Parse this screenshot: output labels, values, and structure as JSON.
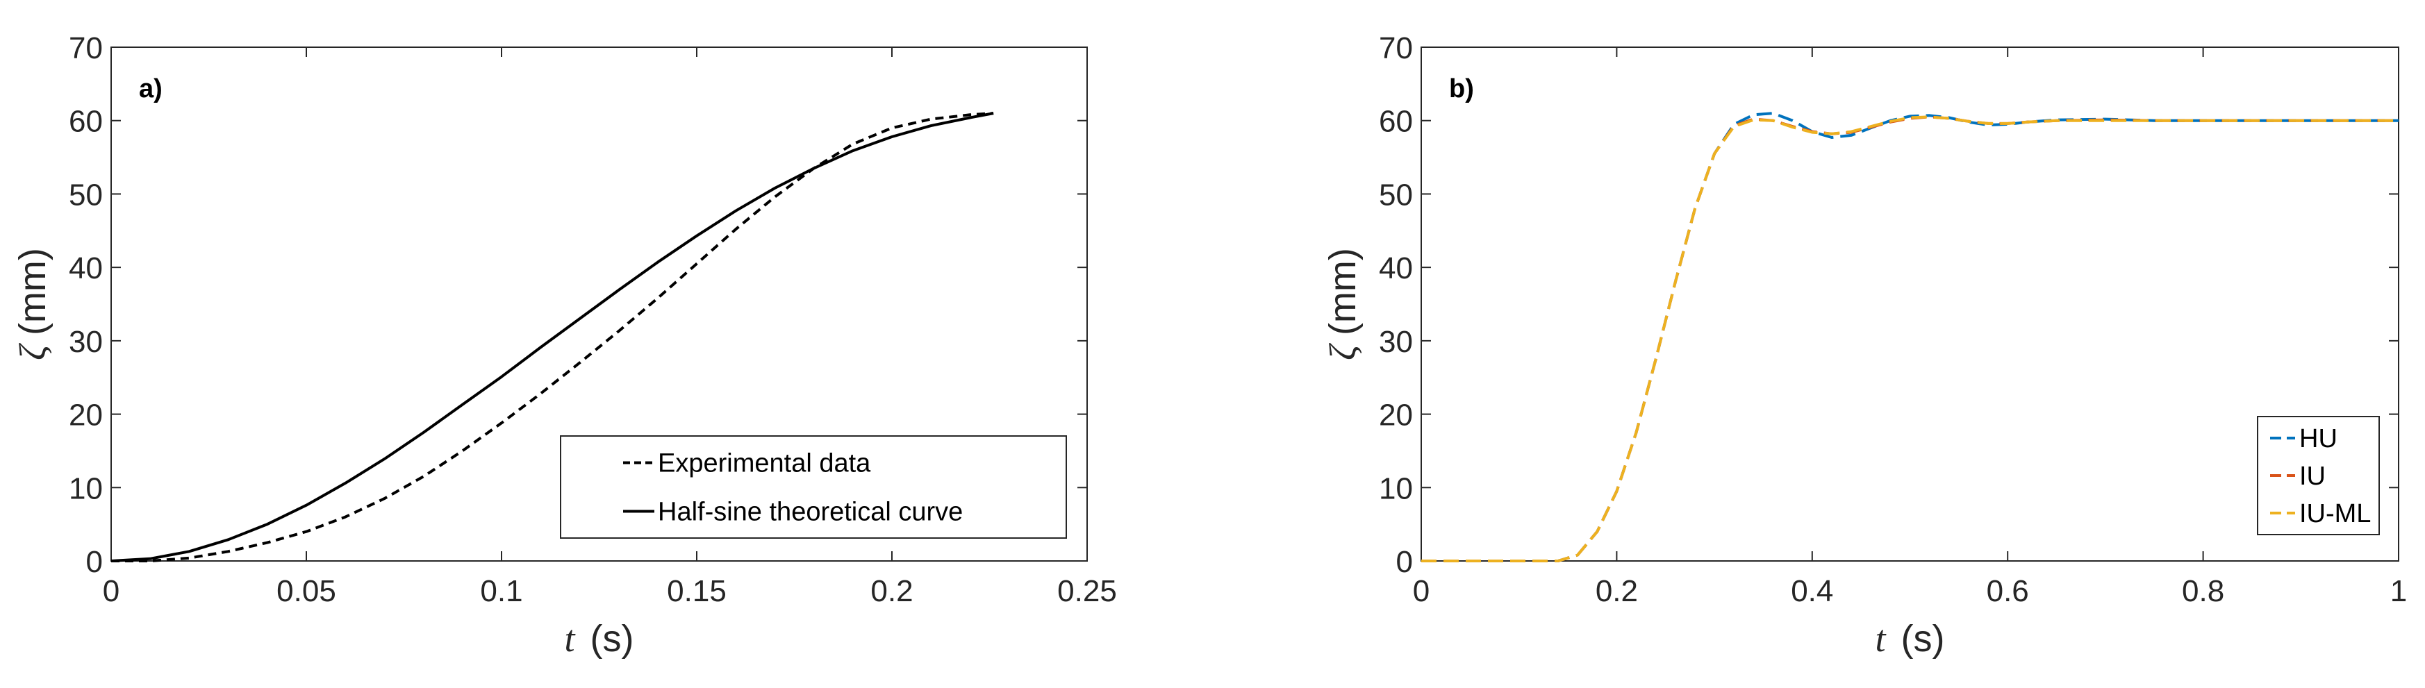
{
  "chart_data": [
    {
      "type": "line",
      "panel_label": "a)",
      "xlabel_symbol": "t",
      "xlabel_unit": "(s)",
      "ylabel_symbol": "ζ",
      "ylabel_unit": "(mm)",
      "xlim": [
        0,
        0.25
      ],
      "ylim": [
        0,
        70
      ],
      "xticks": [
        0,
        0.05,
        0.1,
        0.15,
        0.2,
        0.25
      ],
      "xtick_labels": [
        "0",
        "0.05",
        "0.1",
        "0.15",
        "0.2",
        "0.25"
      ],
      "yticks": [
        0,
        10,
        20,
        30,
        40,
        50,
        60,
        70
      ],
      "ytick_labels": [
        "0",
        "10",
        "20",
        "30",
        "40",
        "50",
        "60",
        "70"
      ],
      "grid": false,
      "legend_position": "bottom-right",
      "series": [
        {
          "name": "Experimental data",
          "color": "#000000",
          "dash": "dashed",
          "x": [
            0,
            0.01,
            0.02,
            0.03,
            0.04,
            0.05,
            0.06,
            0.07,
            0.08,
            0.09,
            0.1,
            0.11,
            0.12,
            0.13,
            0.14,
            0.15,
            0.16,
            0.17,
            0.18,
            0.19,
            0.2,
            0.21,
            0.22,
            0.226
          ],
          "y": [
            0,
            0,
            0.4,
            1.3,
            2.5,
            4.0,
            6.0,
            8.5,
            11.5,
            15.0,
            18.8,
            22.8,
            27.0,
            31.3,
            35.8,
            40.5,
            45.2,
            49.6,
            53.5,
            56.8,
            59.0,
            60.2,
            60.8,
            61
          ]
        },
        {
          "name": "Half-sine theoretical curve",
          "color": "#000000",
          "dash": "solid",
          "x": [
            0,
            0.01,
            0.02,
            0.03,
            0.04,
            0.05,
            0.06,
            0.07,
            0.08,
            0.09,
            0.1,
            0.11,
            0.12,
            0.13,
            0.14,
            0.15,
            0.16,
            0.17,
            0.18,
            0.19,
            0.2,
            0.21,
            0.22,
            0.226
          ],
          "y": [
            0,
            0.3,
            1.3,
            2.9,
            5.0,
            7.6,
            10.6,
            13.9,
            17.5,
            21.3,
            25.1,
            29.1,
            33.0,
            36.9,
            40.7,
            44.3,
            47.7,
            50.8,
            53.5,
            55.9,
            57.8,
            59.3,
            60.4,
            61
          ]
        }
      ]
    },
    {
      "type": "line",
      "panel_label": "b)",
      "xlabel_symbol": "t",
      "xlabel_unit": "(s)",
      "ylabel_symbol": "ζ",
      "ylabel_unit": "(mm)",
      "xlim": [
        0,
        1
      ],
      "ylim": [
        0,
        70
      ],
      "xticks": [
        0,
        0.2,
        0.4,
        0.6,
        0.8,
        1
      ],
      "xtick_labels": [
        "0",
        "0.2",
        "0.4",
        "0.6",
        "0.8",
        "1"
      ],
      "yticks": [
        0,
        10,
        20,
        30,
        40,
        50,
        60,
        70
      ],
      "ytick_labels": [
        "0",
        "10",
        "20",
        "30",
        "40",
        "50",
        "60",
        "70"
      ],
      "grid": false,
      "legend_position": "bottom-right",
      "series": [
        {
          "name": "HU",
          "color": "#0072BD",
          "dash": "dashed",
          "x": [
            0,
            0.14,
            0.16,
            0.18,
            0.2,
            0.22,
            0.24,
            0.26,
            0.28,
            0.3,
            0.32,
            0.34,
            0.36,
            0.38,
            0.4,
            0.42,
            0.44,
            0.46,
            0.48,
            0.5,
            0.52,
            0.54,
            0.56,
            0.58,
            0.6,
            0.62,
            0.65,
            0.7,
            0.75,
            0.8,
            0.9,
            1
          ],
          "y": [
            0,
            0,
            0.8,
            4.0,
            9.5,
            17.5,
            27.5,
            38.0,
            48.0,
            55.5,
            59.5,
            60.8,
            61.0,
            60.0,
            58.5,
            57.7,
            58.0,
            59.0,
            60.0,
            60.6,
            60.7,
            60.4,
            59.8,
            59.4,
            59.5,
            59.8,
            60.1,
            60.2,
            60.0,
            60.0,
            60.0,
            60.0
          ]
        },
        {
          "name": "IU",
          "color": "#D95319",
          "dash": "dashed",
          "x": [
            0,
            0.14,
            0.16,
            0.18,
            0.2,
            0.22,
            0.24,
            0.26,
            0.28,
            0.3,
            0.32,
            0.34,
            0.36,
            0.38,
            0.4,
            0.42,
            0.44,
            0.46,
            0.48,
            0.5,
            0.52,
            0.54,
            0.56,
            0.58,
            0.6,
            0.62,
            0.65,
            0.7,
            0.75,
            0.8,
            0.9,
            1
          ],
          "y": [
            0,
            0,
            0.8,
            4.0,
            9.5,
            17.5,
            27.5,
            38.0,
            48.0,
            55.5,
            59.3,
            60.2,
            60.0,
            59.2,
            58.5,
            58.2,
            58.4,
            59.1,
            59.8,
            60.3,
            60.5,
            60.3,
            59.9,
            59.6,
            59.6,
            59.8,
            60.0,
            60.1,
            60.0,
            60.0,
            60.0,
            60.0
          ]
        },
        {
          "name": "IU-ML",
          "color": "#EDB120",
          "dash": "dashed",
          "x": [
            0,
            0.14,
            0.16,
            0.18,
            0.2,
            0.22,
            0.24,
            0.26,
            0.28,
            0.3,
            0.32,
            0.34,
            0.36,
            0.38,
            0.4,
            0.42,
            0.44,
            0.46,
            0.48,
            0.5,
            0.52,
            0.54,
            0.56,
            0.58,
            0.6,
            0.62,
            0.65,
            0.7,
            0.75,
            0.8,
            0.9,
            1
          ],
          "y": [
            0,
            0,
            0.8,
            4.0,
            9.5,
            17.5,
            27.5,
            38.0,
            48.0,
            55.5,
            59.2,
            60.1,
            60.0,
            59.1,
            58.4,
            58.2,
            58.5,
            59.2,
            59.9,
            60.4,
            60.5,
            60.3,
            59.9,
            59.6,
            59.6,
            59.8,
            60.0,
            60.0,
            60.0,
            60.0,
            60.0,
            60.0
          ]
        }
      ]
    }
  ]
}
